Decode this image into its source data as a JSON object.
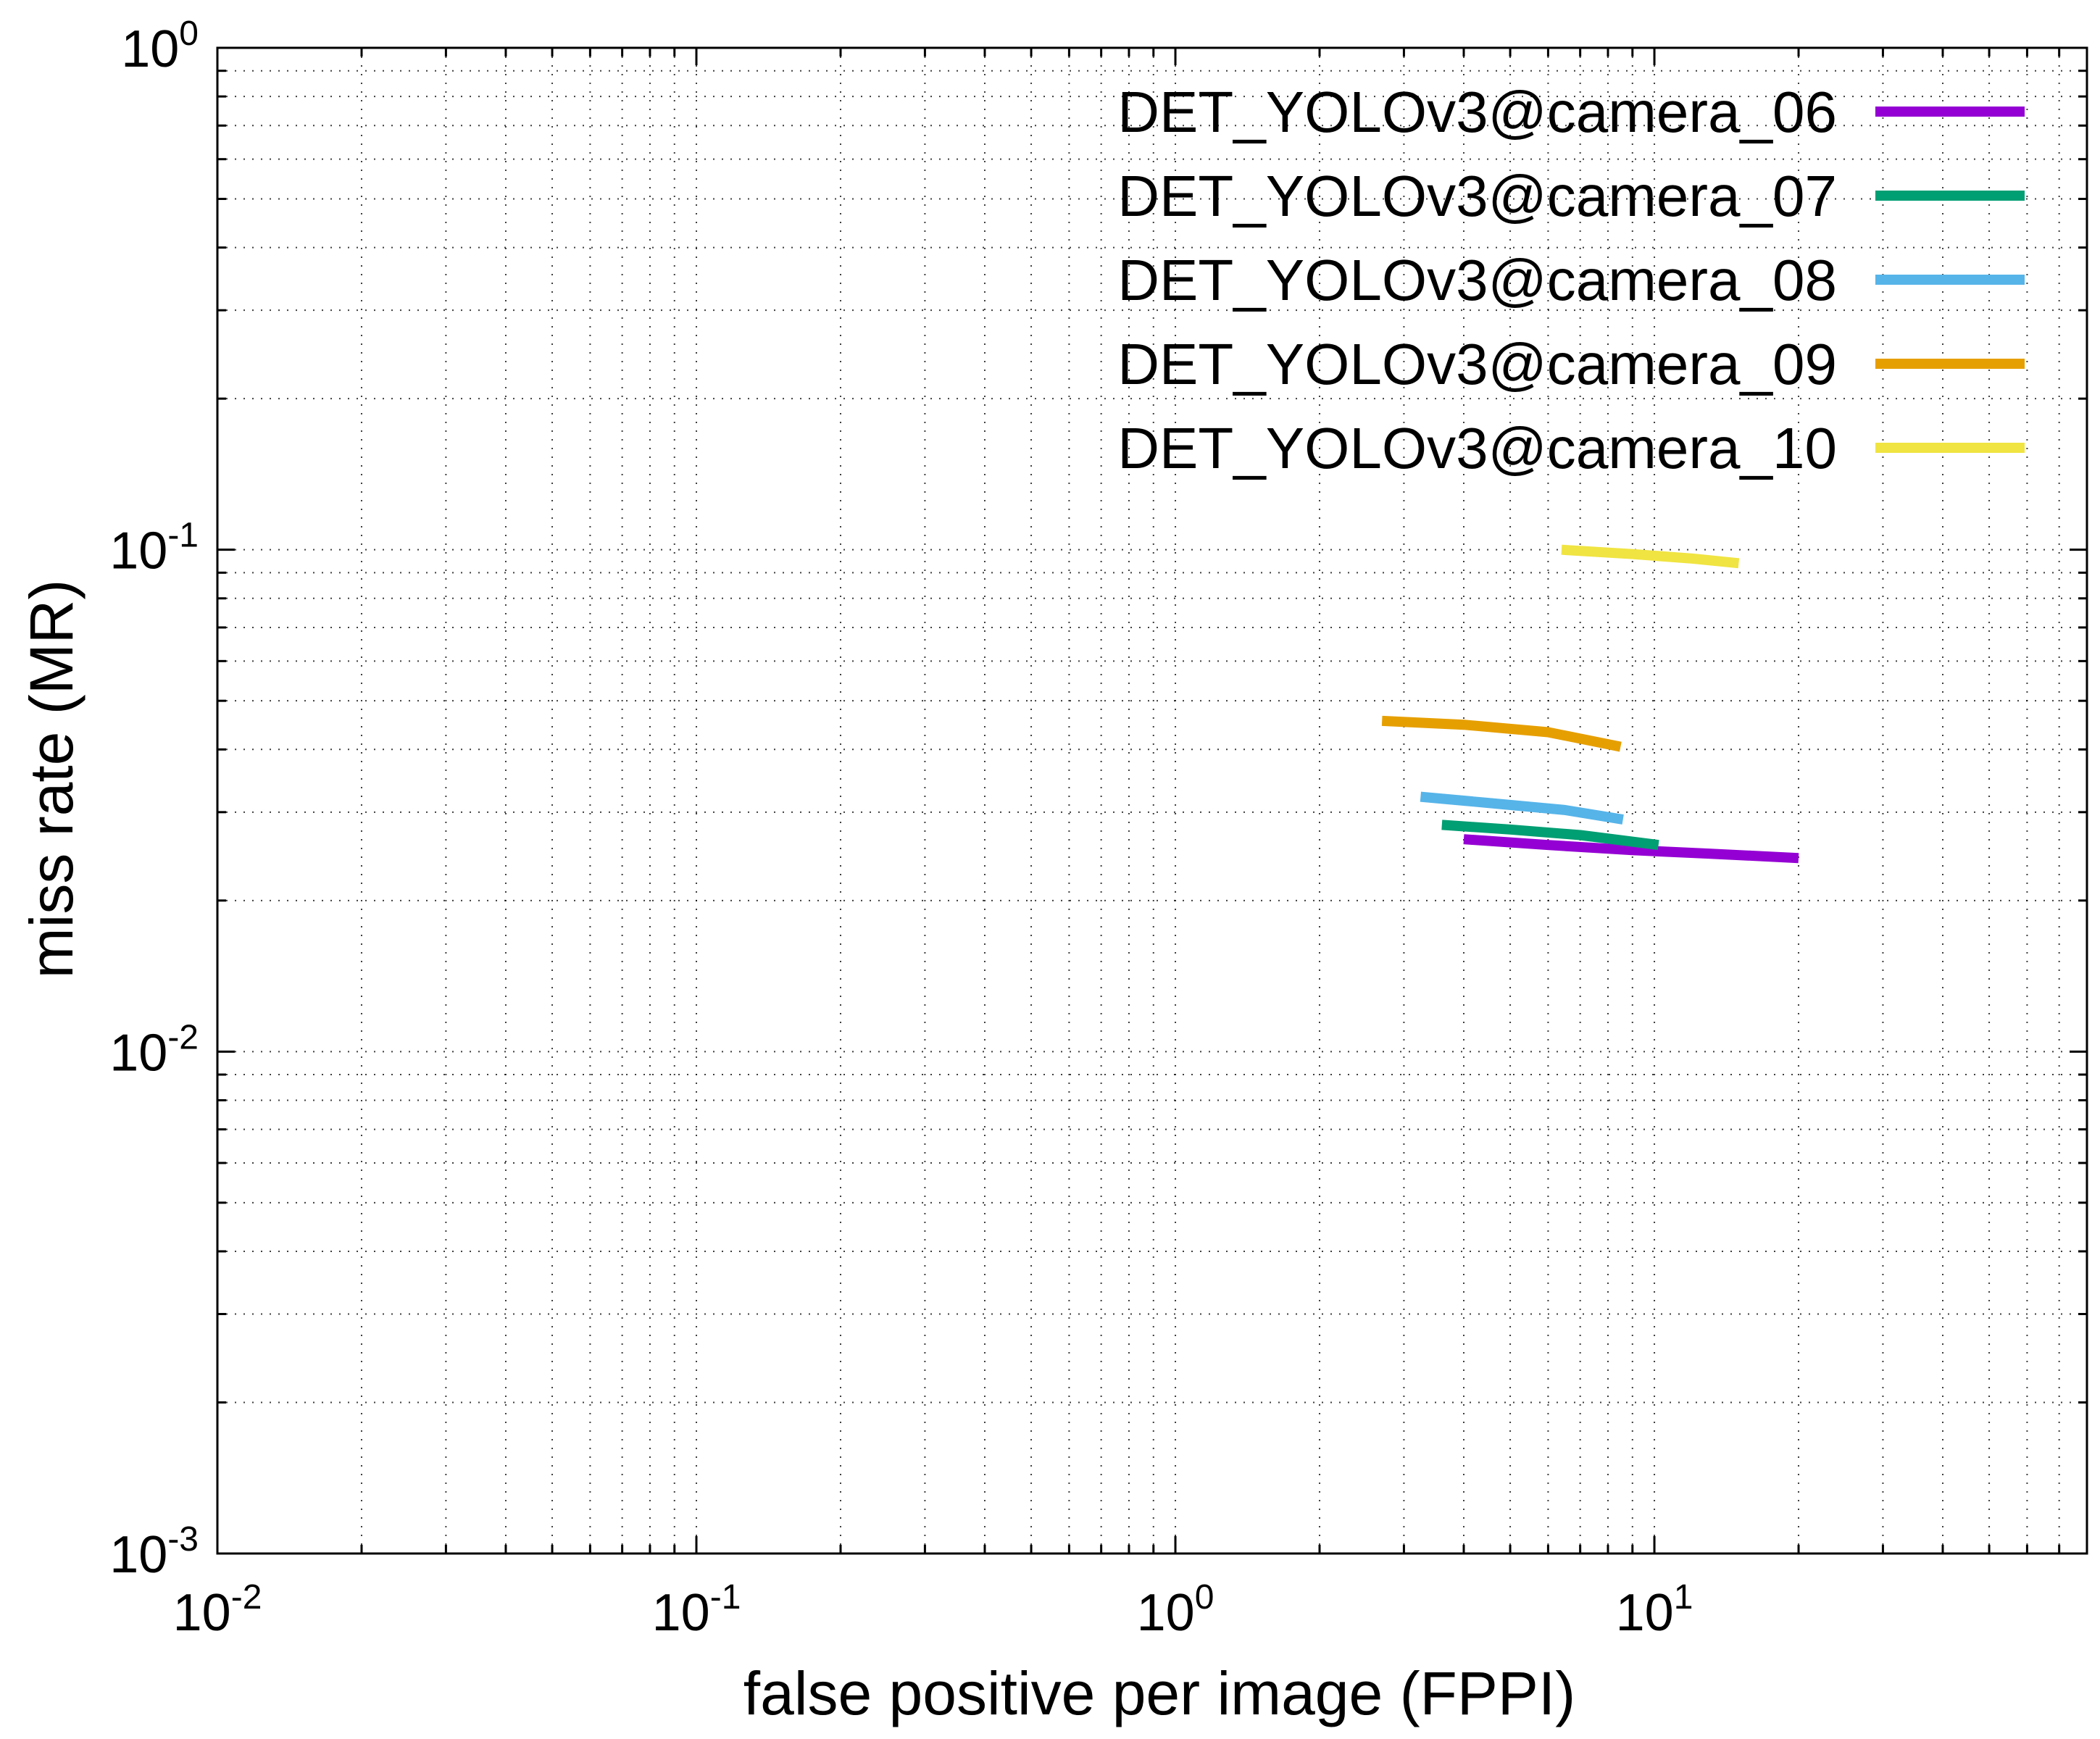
{
  "chart_data": {
    "type": "line",
    "scale": {
      "x": "log",
      "y": "log"
    },
    "xlabel": "false positive per image (FPPI)",
    "ylabel": "miss rate (MR)",
    "xlim": [
      0.01,
      80
    ],
    "ylim": [
      0.001,
      1
    ],
    "grid": true,
    "legend_position": "top-right",
    "x_ticks": [
      {
        "base": "10",
        "exp": "-2",
        "value": 0.01
      },
      {
        "base": "10",
        "exp": "-1",
        "value": 0.1
      },
      {
        "base": "10",
        "exp": "0",
        "value": 1
      },
      {
        "base": "10",
        "exp": "1",
        "value": 10
      }
    ],
    "y_ticks": [
      {
        "base": "10",
        "exp": "-3",
        "value": 0.001
      },
      {
        "base": "10",
        "exp": "-2",
        "value": 0.01
      },
      {
        "base": "10",
        "exp": "-1",
        "value": 0.1
      },
      {
        "base": "10",
        "exp": "0",
        "value": 1
      }
    ],
    "series": [
      {
        "name": "DET_YOLOv3@camera_06",
        "color": "#9400d3",
        "x": [
          4.0,
          6.0,
          9.0,
          13.0,
          20.0
        ],
        "y": [
          0.0265,
          0.0258,
          0.0252,
          0.0248,
          0.0243
        ]
      },
      {
        "name": "DET_YOLOv3@camera_07",
        "color": "#009e73",
        "x": [
          3.6,
          5.0,
          7.0,
          10.2
        ],
        "y": [
          0.0283,
          0.0277,
          0.027,
          0.0258
        ]
      },
      {
        "name": "DET_YOLOv3@camera_08",
        "color": "#56b4e9",
        "x": [
          3.25,
          4.5,
          6.5,
          8.6
        ],
        "y": [
          0.0322,
          0.0313,
          0.0303,
          0.029
        ]
      },
      {
        "name": "DET_YOLOv3@camera_09",
        "color": "#e69f00",
        "x": [
          2.7,
          4.0,
          6.0,
          8.5
        ],
        "y": [
          0.0456,
          0.0448,
          0.0433,
          0.0405
        ]
      },
      {
        "name": "DET_YOLOv3@camera_10",
        "color": "#f0e442",
        "x": [
          6.4,
          9.0,
          12.0,
          15.0
        ],
        "y": [
          0.1,
          0.098,
          0.096,
          0.094
        ]
      }
    ]
  }
}
